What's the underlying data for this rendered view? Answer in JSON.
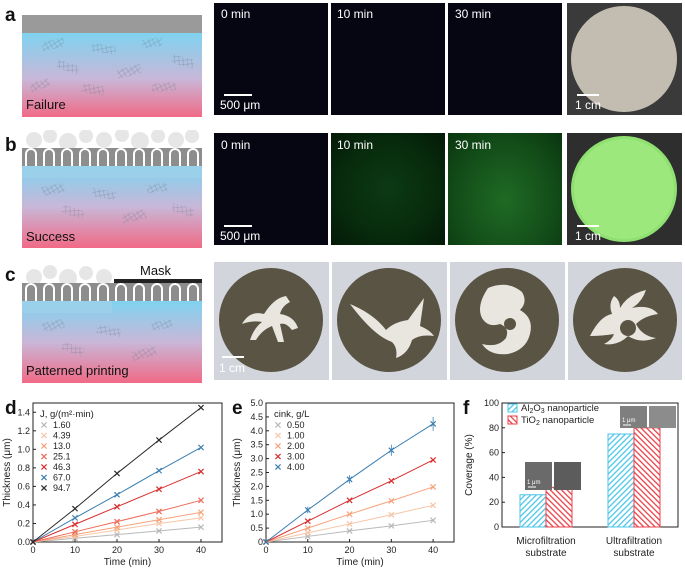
{
  "panels": {
    "a": {
      "letter": "a",
      "schematic_label": "Failure",
      "times": [
        "0 min",
        "10 min",
        "30 min"
      ],
      "scale_micro": "500 μm",
      "scale_photo": "1 cm"
    },
    "b": {
      "letter": "b",
      "schematic_label": "Success",
      "times": [
        "0 min",
        "10 min",
        "30 min"
      ],
      "scale_micro": "500 μm",
      "scale_photo": "1 cm"
    },
    "c": {
      "letter": "c",
      "schematic_label": "Patterned printing",
      "mask_label": "Mask",
      "scale_photo": "1 cm"
    },
    "f": {
      "letter": "f",
      "inset_scale": "1 μm",
      "inset_scale2": "1 μm"
    }
  },
  "chart_data": [
    {
      "id": "d",
      "letter": "d",
      "type": "line",
      "xlabel": "Time (min)",
      "ylabel": "Thickness (μm)",
      "xlim": [
        0,
        45
      ],
      "ylim": [
        0,
        1.5
      ],
      "xticks": [
        0,
        10,
        20,
        30,
        40
      ],
      "yticks": [
        0,
        0.2,
        0.4,
        0.6,
        0.8,
        1.0,
        1.2,
        1.4
      ],
      "ytick_labels": [
        "0.0",
        "0.2",
        "0.4",
        "0.6",
        "0.8",
        "1.0",
        "1.2",
        "1.4"
      ],
      "legend_title": "J, g/(m²·min)",
      "series": [
        {
          "name": "1.60",
          "color": "#b8b8b8",
          "x": [
            0,
            10,
            20,
            30,
            40
          ],
          "y": [
            0,
            0.04,
            0.08,
            0.12,
            0.16
          ]
        },
        {
          "name": "4.39",
          "color": "#f6c6a8",
          "x": [
            0,
            10,
            20,
            30,
            40
          ],
          "y": [
            0,
            0.06,
            0.13,
            0.2,
            0.26
          ]
        },
        {
          "name": "13.0",
          "color": "#f5a27a",
          "x": [
            0,
            10,
            20,
            30,
            40
          ],
          "y": [
            0,
            0.08,
            0.16,
            0.24,
            0.32
          ]
        },
        {
          "name": "25.1",
          "color": "#ee6a5a",
          "x": [
            0,
            10,
            20,
            30,
            40
          ],
          "y": [
            0,
            0.11,
            0.22,
            0.33,
            0.45
          ]
        },
        {
          "name": "46.3",
          "color": "#d92e2e",
          "x": [
            0,
            10,
            20,
            30,
            40
          ],
          "y": [
            0,
            0.19,
            0.38,
            0.57,
            0.76
          ]
        },
        {
          "name": "67.0",
          "color": "#3b7eb0",
          "x": [
            0,
            10,
            20,
            30,
            40
          ],
          "y": [
            0,
            0.26,
            0.51,
            0.77,
            1.02
          ]
        },
        {
          "name": "94.7",
          "color": "#2b2b2b",
          "x": [
            0,
            10,
            20,
            30,
            40
          ],
          "y": [
            0,
            0.36,
            0.74,
            1.1,
            1.45
          ]
        }
      ]
    },
    {
      "id": "e",
      "letter": "e",
      "type": "line",
      "xlabel": "Time (min)",
      "ylabel": "Thickness (μm)",
      "xlim": [
        0,
        45
      ],
      "ylim": [
        0,
        5.0
      ],
      "xticks": [
        0,
        10,
        20,
        30,
        40
      ],
      "yticks": [
        0,
        0.5,
        1.0,
        1.5,
        2.0,
        2.5,
        3.0,
        3.5,
        4.0,
        4.5,
        5.0
      ],
      "ytick_labels": [
        "0",
        "0.5",
        "1.0",
        "1.5",
        "2.0",
        "2.5",
        "3.0",
        "3.5",
        "4.0",
        "4.5",
        "5.0"
      ],
      "legend_title": "cink, g/L",
      "series": [
        {
          "name": "0.50",
          "color": "#b8b8b8",
          "x": [
            0,
            10,
            20,
            30,
            40
          ],
          "y": [
            0,
            0.2,
            0.4,
            0.58,
            0.78
          ]
        },
        {
          "name": "1.00",
          "color": "#f6c6a8",
          "x": [
            0,
            10,
            20,
            30,
            40
          ],
          "y": [
            0,
            0.33,
            0.65,
            0.98,
            1.32
          ]
        },
        {
          "name": "2.00",
          "color": "#f5a27a",
          "x": [
            0,
            10,
            20,
            30,
            40
          ],
          "y": [
            0,
            0.5,
            1.0,
            1.48,
            1.98
          ]
        },
        {
          "name": "3.00",
          "color": "#d92e2e",
          "x": [
            0,
            10,
            20,
            30,
            40
          ],
          "y": [
            0,
            0.75,
            1.5,
            2.2,
            2.95
          ]
        },
        {
          "name": "4.00",
          "color": "#3b7eb0",
          "x": [
            0,
            10,
            20,
            30,
            40
          ],
          "y": [
            0,
            1.15,
            2.25,
            3.3,
            4.25
          ],
          "err": [
            0,
            0.12,
            0.15,
            0.2,
            0.25
          ]
        }
      ]
    },
    {
      "id": "f",
      "letter": "f",
      "type": "bar",
      "ylabel": "Coverage (%)",
      "ylim": [
        0,
        100
      ],
      "yticks": [
        0,
        20,
        40,
        60,
        80,
        100
      ],
      "categories": [
        "Microfiltration substrate",
        "Ultrafiltration substrate"
      ],
      "category_lines": [
        [
          "Microfiltration",
          "substrate"
        ],
        [
          "Ultrafiltration",
          "substrate"
        ]
      ],
      "series": [
        {
          "name": "Al2O3 nanoparticle",
          "color": "#4cc6e8",
          "values": [
            26,
            75
          ]
        },
        {
          "name": "TiO2 nanoparticle",
          "color": "#e8424a",
          "values": [
            32,
            80
          ]
        }
      ]
    }
  ]
}
